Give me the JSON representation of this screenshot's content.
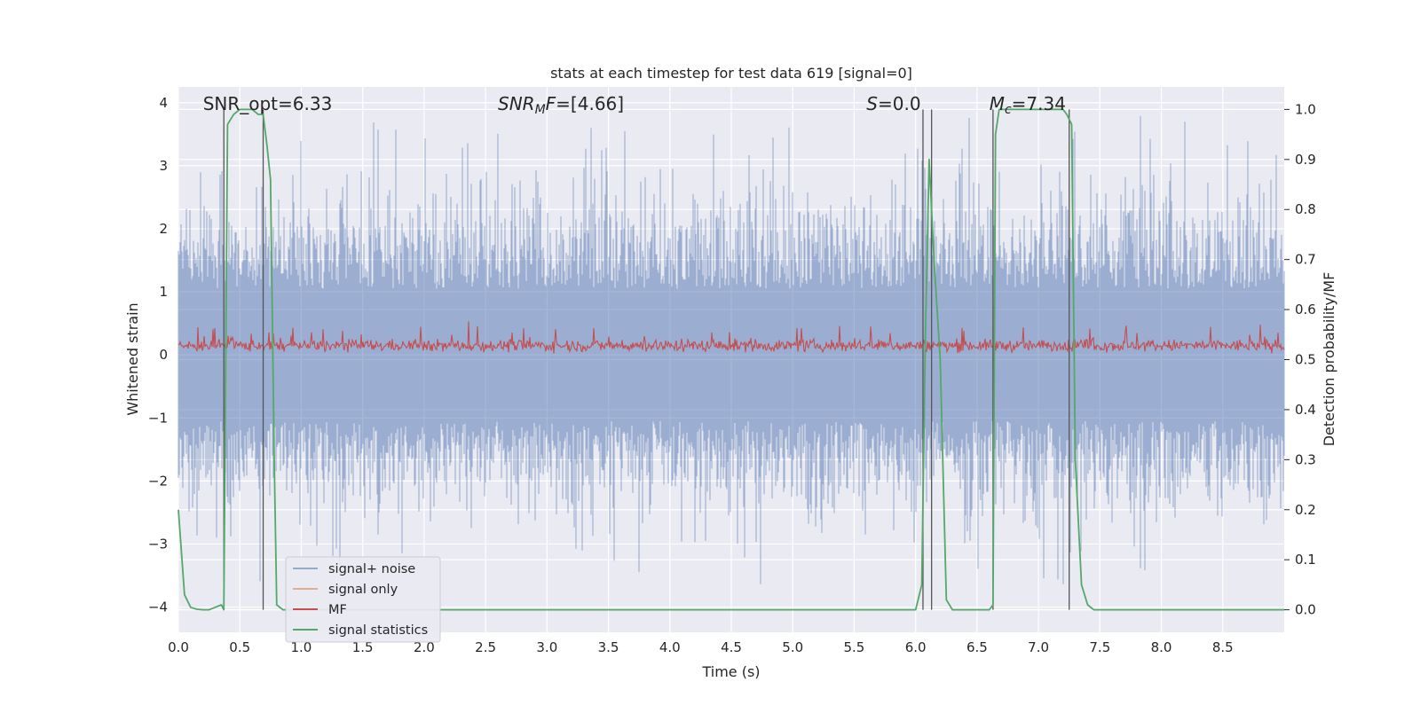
{
  "chart_data": {
    "type": "line",
    "title": "stats at each timestep for test data 619 [signal=0]",
    "xlabel": "Time (s)",
    "ylabel": "Whitened strain",
    "ylabel_right": "Detection probability/MF",
    "xlim": [
      0.0,
      9.0
    ],
    "ylim": [
      -4.4,
      4.25
    ],
    "ylim_right": [
      -0.045,
      1.045
    ],
    "x_ticks": [
      "0.0",
      "0.5",
      "1.0",
      "1.5",
      "2.0",
      "2.5",
      "3.0",
      "3.5",
      "4.0",
      "4.5",
      "5.0",
      "5.5",
      "6.0",
      "6.5",
      "7.0",
      "7.5",
      "8.0",
      "8.5"
    ],
    "y_ticks": [
      "−4",
      "−3",
      "−2",
      "−1",
      "0",
      "1",
      "2",
      "3",
      "4"
    ],
    "y_right_ticks": [
      "0.0",
      "0.1",
      "0.2",
      "0.3",
      "0.4",
      "0.5",
      "0.6",
      "0.7",
      "0.8",
      "0.9",
      "1.0"
    ],
    "grid": true,
    "legend_position": "lower-left",
    "annotations": [
      {
        "id": "snr-opt",
        "text": "SNR_opt=6.33",
        "x": 0.2
      },
      {
        "id": "snr-mf",
        "text": "SNR_MF=[4.66]",
        "x": 2.6
      },
      {
        "id": "s-val",
        "text": "S=0.0",
        "x": 5.6
      },
      {
        "id": "mc",
        "text": "M_c=7.34",
        "x": 6.6
      }
    ],
    "vertical_lines_x": [
      0.37,
      0.69,
      6.06,
      6.13,
      6.63,
      7.25
    ],
    "series": [
      {
        "name": "signal+ noise",
        "color": "#4c72b0",
        "axis": "left",
        "style": "noise band, amplitude about 1.5 with spikes up to 3.8"
      },
      {
        "name": "signal only",
        "color": "#dd8452",
        "axis": "left",
        "values": []
      },
      {
        "name": "MF",
        "color": "#c44e52",
        "axis": "right",
        "style": "noise band around 0.53, range 0.51 to 0.59"
      },
      {
        "name": "signal statistics",
        "color": "#55a868",
        "axis": "right",
        "x": [
          0.0,
          0.05,
          0.1,
          0.15,
          0.2,
          0.25,
          0.3,
          0.35,
          0.37,
          0.4,
          0.45,
          0.5,
          0.55,
          0.6,
          0.65,
          0.69,
          0.72,
          0.75,
          0.78,
          0.8,
          0.85,
          0.9,
          6.0,
          6.05,
          6.08,
          6.11,
          6.15,
          6.2,
          6.25,
          6.3,
          6.6,
          6.63,
          6.65,
          6.68,
          7.2,
          7.23,
          7.27,
          7.3,
          7.35,
          7.4,
          7.45,
          9.0
        ],
        "y": [
          0.2,
          0.03,
          0.005,
          0.001,
          0.0,
          0.0,
          0.005,
          0.01,
          0.0,
          0.97,
          0.99,
          1.0,
          1.0,
          1.0,
          0.99,
          0.99,
          0.93,
          0.86,
          0.3,
          0.01,
          0.0,
          0.0,
          0.0,
          0.05,
          0.55,
          0.9,
          0.7,
          0.5,
          0.02,
          0.0,
          0.0,
          0.01,
          0.95,
          1.0,
          1.0,
          0.99,
          0.97,
          0.3,
          0.05,
          0.01,
          0.0,
          0.0
        ]
      }
    ]
  }
}
